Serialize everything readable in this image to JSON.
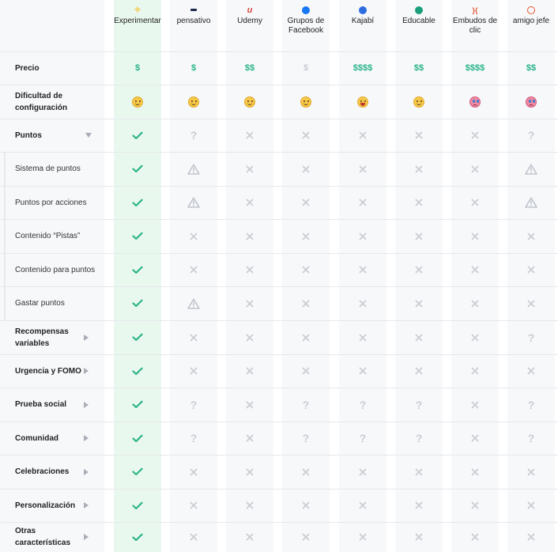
{
  "colors": {
    "highlight_bg": "#e9f8ef",
    "column_bg": "#f7f8fa",
    "check": "#2bb48a",
    "cross": "#c9cdd3",
    "warning": "#b6bbc3",
    "question": "#c9cdd3",
    "price": "#2bb48a"
  },
  "columns": [
    {
      "name": "Experimentar",
      "logo_icon": "experimentar-logo-icon",
      "logo_color": "#f2c22e"
    },
    {
      "name": "pensativo",
      "logo_icon": "pensativo-logo-icon",
      "logo_color": "#1b2a4a"
    },
    {
      "name": "Udemy",
      "logo_icon": "udemy-logo-icon",
      "logo_color": "#d9463b"
    },
    {
      "name": "Grupos de Facebook",
      "logo_icon": "facebook-logo-icon",
      "logo_color": "#1877f2"
    },
    {
      "name": "Kajabí",
      "logo_icon": "kajabi-logo-icon",
      "logo_color": "#2d6cdf"
    },
    {
      "name": "Educable",
      "logo_icon": "educable-logo-icon",
      "logo_color": "#1a9e7c"
    },
    {
      "name": "Embudos de clic",
      "logo_icon": "embudos-logo-icon",
      "logo_color": "#e25a3c"
    },
    {
      "name": "amigo jefe",
      "logo_icon": "amigo-jefe-logo-icon",
      "logo_color": "#e8562a"
    }
  ],
  "rows": [
    {
      "label": "Precio",
      "style": "bold",
      "caret": "none",
      "cells": [
        "$",
        "$",
        "$$",
        "$",
        "$$$$",
        "$$",
        "$$$$",
        "$$"
      ],
      "cell_type": "price",
      "muted": [
        false,
        false,
        false,
        true,
        false,
        false,
        false,
        false
      ]
    },
    {
      "label": "Dificultad de configuración",
      "style": "bold",
      "caret": "none",
      "cells": [
        "smile",
        "smile",
        "smile",
        "smile",
        "grin",
        "smile",
        "cry",
        "cry"
      ],
      "cell_type": "face"
    },
    {
      "label": "Puntos",
      "style": "bold",
      "caret": "down",
      "cells": [
        "check",
        "question",
        "cross",
        "cross",
        "cross",
        "cross",
        "cross",
        "question"
      ],
      "cell_type": "icon"
    },
    {
      "label": "Sistema de puntos",
      "style": "sub",
      "caret": "none",
      "cells": [
        "check",
        "warning",
        "cross",
        "cross",
        "cross",
        "cross",
        "cross",
        "warning"
      ],
      "cell_type": "icon"
    },
    {
      "label": "Puntos por acciones",
      "style": "sub",
      "caret": "none",
      "cells": [
        "check",
        "warning",
        "cross",
        "cross",
        "cross",
        "cross",
        "cross",
        "warning"
      ],
      "cell_type": "icon"
    },
    {
      "label": "Contenido “Pistas”",
      "style": "sub",
      "caret": "none",
      "cells": [
        "check",
        "cross",
        "cross",
        "cross",
        "cross",
        "cross",
        "cross",
        "cross"
      ],
      "cell_type": "icon"
    },
    {
      "label": "Contenido para puntos",
      "style": "sub",
      "caret": "none",
      "cells": [
        "check",
        "cross",
        "cross",
        "cross",
        "cross",
        "cross",
        "cross",
        "cross"
      ],
      "cell_type": "icon"
    },
    {
      "label": "Gastar puntos",
      "style": "sub",
      "caret": "none",
      "cells": [
        "check",
        "warning",
        "cross",
        "cross",
        "cross",
        "cross",
        "cross",
        "cross"
      ],
      "cell_type": "icon"
    },
    {
      "label": "Recompensas variables",
      "style": "bold",
      "caret": "right",
      "cells": [
        "check",
        "cross",
        "cross",
        "cross",
        "cross",
        "cross",
        "cross",
        "question"
      ],
      "cell_type": "icon"
    },
    {
      "label": "Urgencia y FOMO",
      "style": "bold",
      "caret": "right",
      "cells": [
        "check",
        "cross",
        "cross",
        "cross",
        "cross",
        "cross",
        "cross",
        "cross"
      ],
      "cell_type": "icon"
    },
    {
      "label": "Prueba social",
      "style": "bold",
      "caret": "right",
      "cells": [
        "check",
        "question",
        "cross",
        "question",
        "question",
        "question",
        "cross",
        "question"
      ],
      "cell_type": "icon"
    },
    {
      "label": "Comunidad",
      "style": "bold",
      "caret": "right",
      "cells": [
        "check",
        "question",
        "cross",
        "question",
        "question",
        "question",
        "cross",
        "question"
      ],
      "cell_type": "icon"
    },
    {
      "label": "Celebraciones",
      "style": "bold",
      "caret": "right",
      "cells": [
        "check",
        "cross",
        "cross",
        "cross",
        "cross",
        "cross",
        "cross",
        "cross"
      ],
      "cell_type": "icon"
    },
    {
      "label": "Personalización",
      "style": "bold",
      "caret": "right",
      "cells": [
        "check",
        "cross",
        "cross",
        "cross",
        "cross",
        "cross",
        "cross",
        "cross"
      ],
      "cell_type": "icon"
    },
    {
      "label": "Otras características",
      "style": "bold",
      "caret": "right",
      "cells": [
        "check",
        "cross",
        "cross",
        "cross",
        "cross",
        "cross",
        "cross",
        "cross"
      ],
      "cell_type": "icon"
    }
  ]
}
